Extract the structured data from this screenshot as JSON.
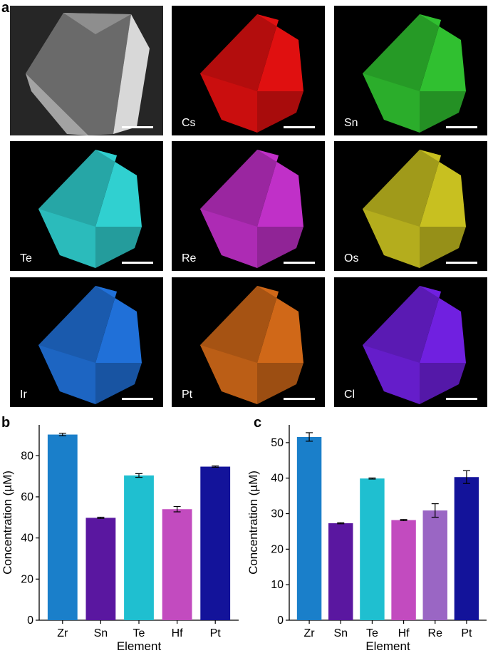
{
  "panel_a": {
    "letter": "a",
    "tiles": [
      {
        "label": "",
        "color": "#9a9a9a",
        "kind": "sem"
      },
      {
        "label": "Cs",
        "color": "#e01010"
      },
      {
        "label": "Sn",
        "color": "#30c030"
      },
      {
        "label": "Te",
        "color": "#30d0d0"
      },
      {
        "label": "Re",
        "color": "#c030c8"
      },
      {
        "label": "Os",
        "color": "#c8c020"
      },
      {
        "label": "Ir",
        "color": "#2070d8"
      },
      {
        "label": "Pt",
        "color": "#d06818"
      },
      {
        "label": "Cl",
        "color": "#7020e0"
      }
    ]
  },
  "chart_data": [
    {
      "panel": "b",
      "type": "bar",
      "categories": [
        "Zr",
        "Sn",
        "Te",
        "Hf",
        "Pt"
      ],
      "values": [
        90.3,
        49.8,
        70.4,
        54.0,
        74.7
      ],
      "errors": [
        0.6,
        0.3,
        0.9,
        1.3,
        0.3
      ],
      "colors": [
        "#1a7fca",
        "#5a17a0",
        "#1fbfd0",
        "#c24bbf",
        "#13139a"
      ],
      "xlabel": "Element",
      "ylabel": "Concentration (µM)",
      "ylim": [
        0,
        95
      ],
      "yticks": [
        "0",
        "20",
        "40",
        "60",
        "80"
      ],
      "ytick_values": [
        0,
        20,
        40,
        60,
        80
      ]
    },
    {
      "panel": "c",
      "type": "bar",
      "categories": [
        "Zr",
        "Sn",
        "Te",
        "Hf",
        "Re",
        "Pt"
      ],
      "values": [
        51.6,
        27.3,
        39.9,
        28.2,
        30.9,
        40.3
      ],
      "errors": [
        1.2,
        0.15,
        0.15,
        0.15,
        1.9,
        1.8
      ],
      "colors": [
        "#1a7fca",
        "#5a17a0",
        "#1fbfd0",
        "#c24bbf",
        "#9a66c4",
        "#13139a"
      ],
      "xlabel": "Element",
      "ylabel": "Concentration (µM)",
      "ylim": [
        0,
        55
      ],
      "yticks": [
        "0",
        "10",
        "20",
        "30",
        "40",
        "50"
      ],
      "ytick_values": [
        0,
        10,
        20,
        30,
        40,
        50
      ]
    }
  ]
}
